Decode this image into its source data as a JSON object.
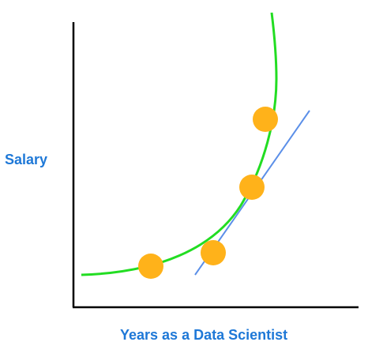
{
  "labels": {
    "y_axis": "Salary",
    "x_axis": "Years as a Data Scientist"
  },
  "colors": {
    "axis": "#000000",
    "label": "#1e78d7",
    "curve": "#22dd22",
    "linear_fit": "#5b8fe8",
    "point": "#ffb21a"
  },
  "diagram": {
    "curve": "increasing, convex (exponential-like) fit through all points",
    "straight_line": "linear fit crossing the upper points",
    "points": 4
  }
}
